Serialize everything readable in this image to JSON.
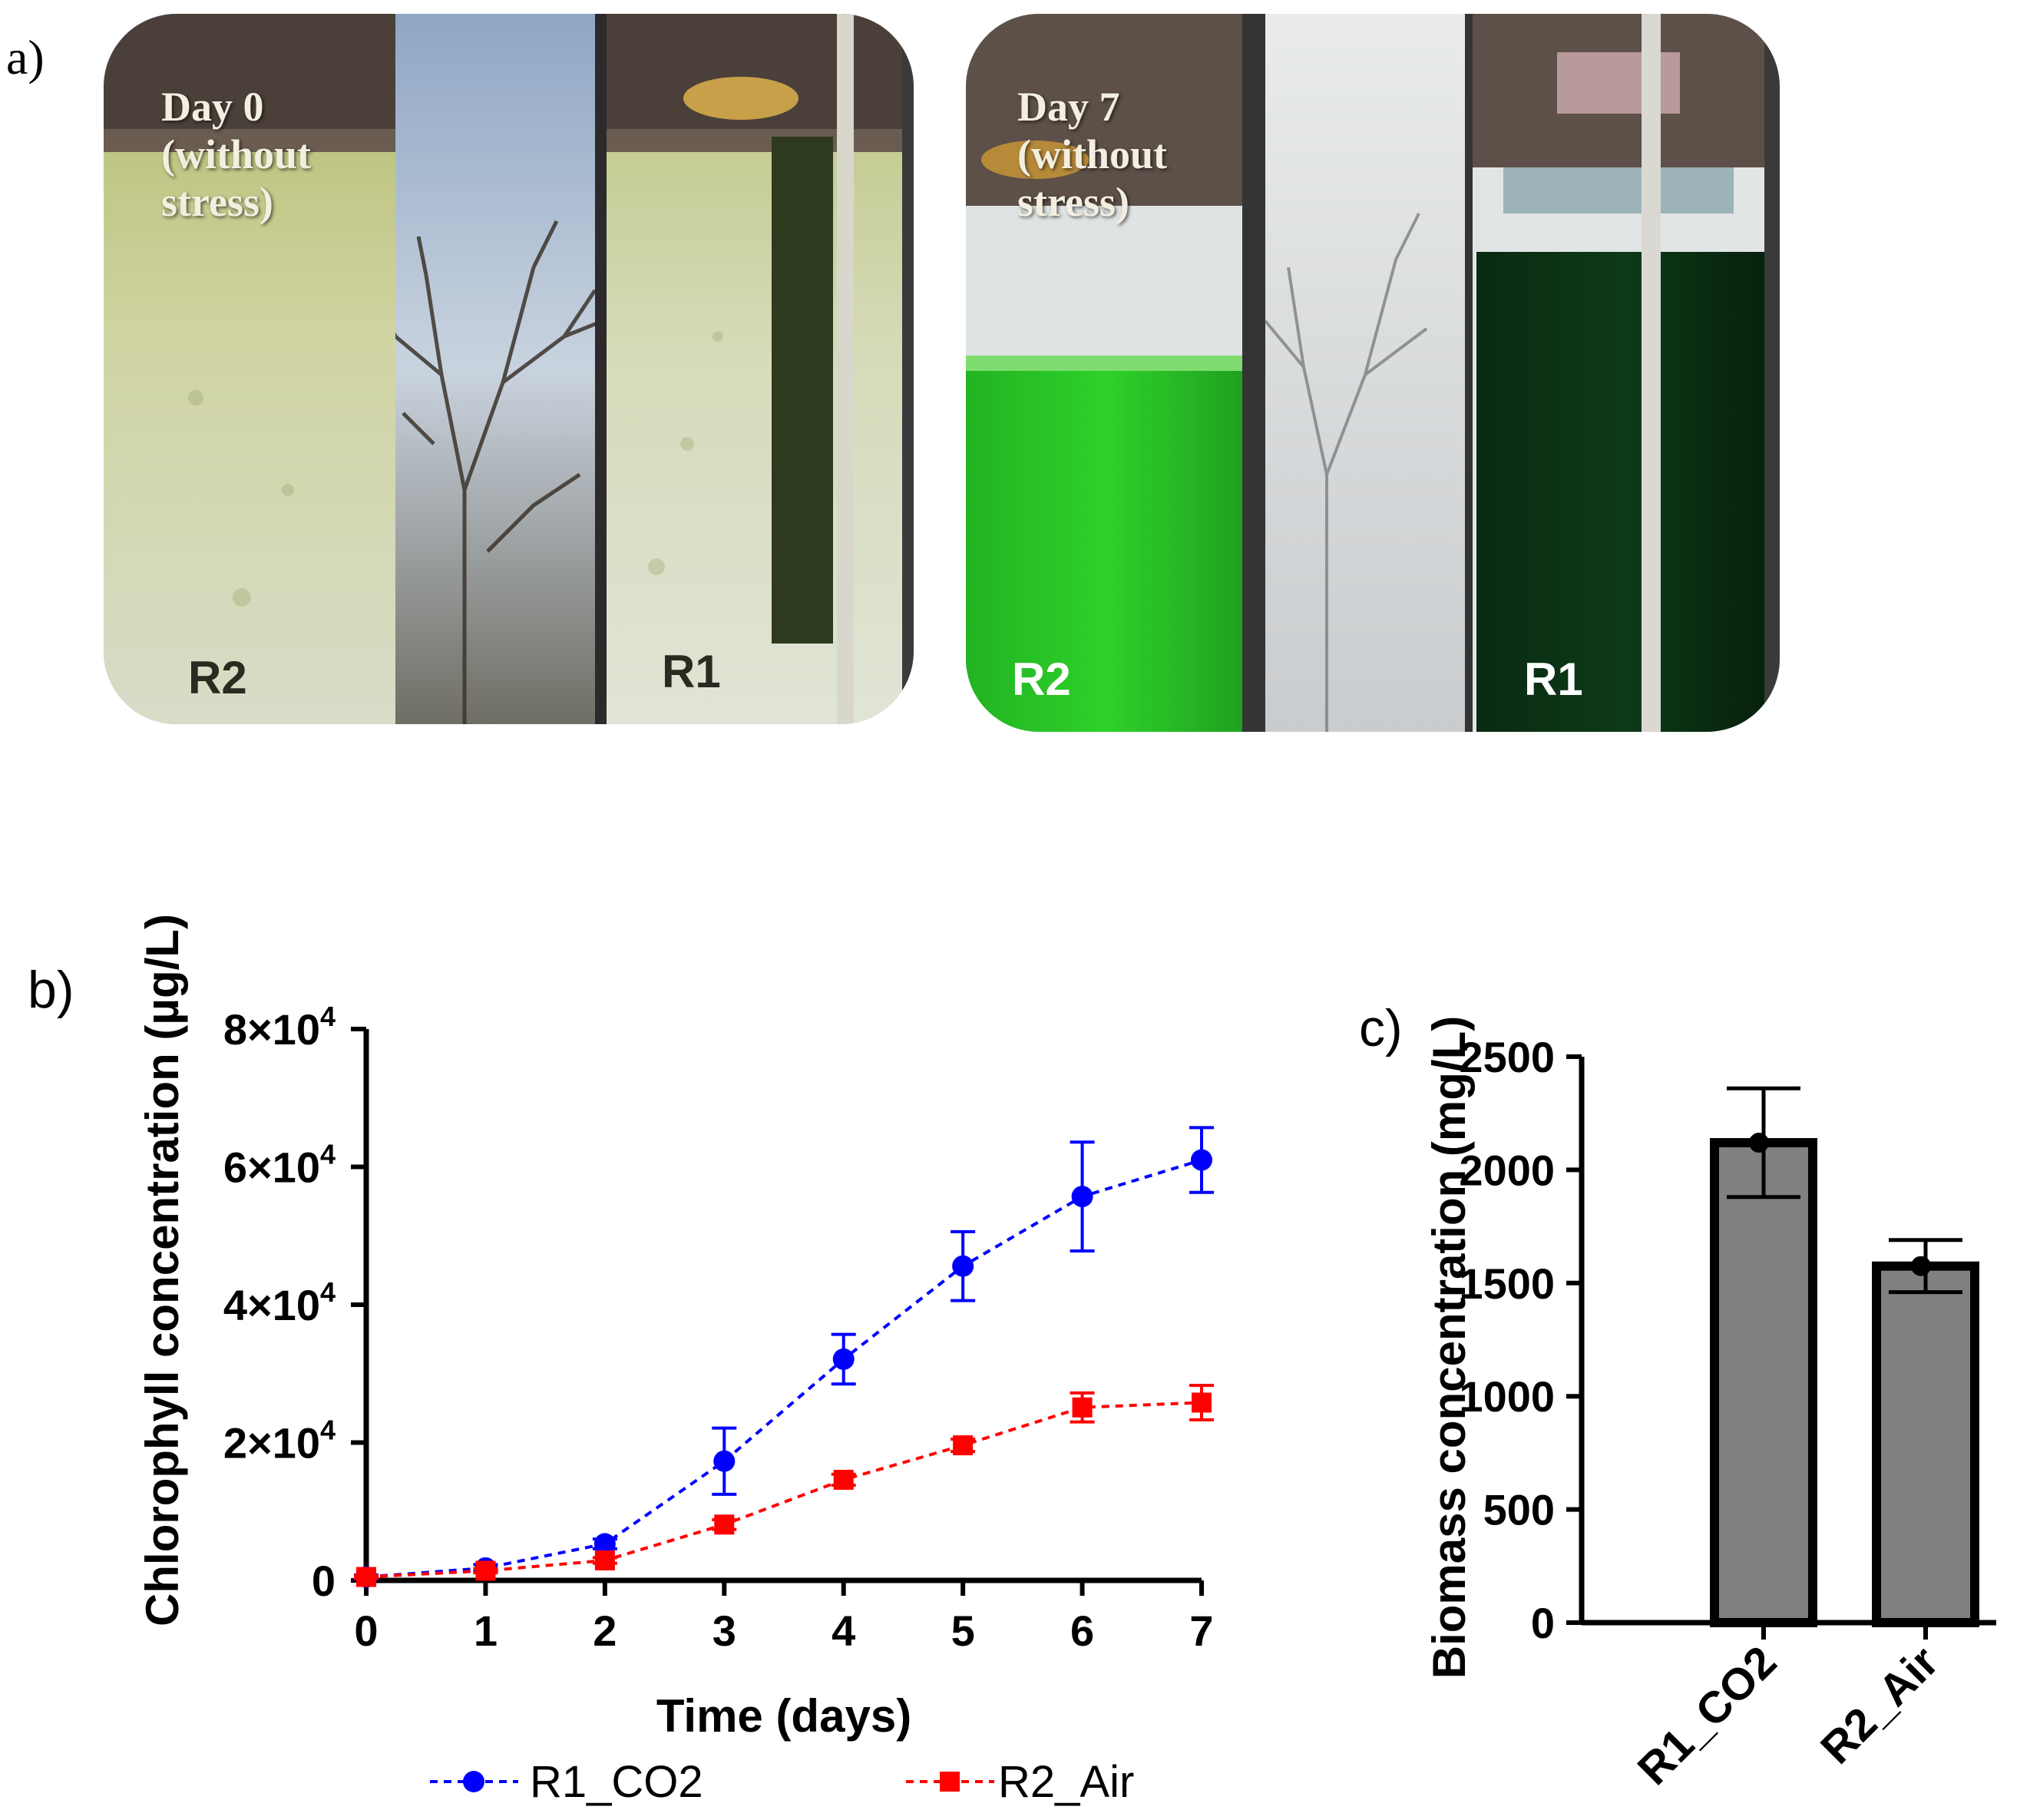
{
  "panels": {
    "a_label": "a)",
    "b_label": "b)",
    "c_label": "c)"
  },
  "photos": [
    {
      "caption": [
        "Day 0",
        "(without",
        "stress)"
      ],
      "left_reactor": "R2",
      "right_reactor": "R1"
    },
    {
      "caption": [
        "Day 7",
        "(without",
        "stress)"
      ],
      "left_reactor": "R2",
      "right_reactor": "R1"
    }
  ],
  "colors": {
    "r1_series": "#0000ff",
    "r2_series": "#ff0000",
    "bar_fill": "#808080",
    "axis": "#000000"
  },
  "chart_data": [
    {
      "id": "b",
      "type": "line",
      "xlabel": "Time (days)",
      "ylabel": "Chlorophyll concentration (µg/L)",
      "xlim": [
        0,
        7
      ],
      "ylim": [
        0,
        80000
      ],
      "x": [
        0,
        1,
        2,
        3,
        4,
        5,
        6,
        7
      ],
      "yticks": [
        {
          "value": 0,
          "mantissa": "0",
          "exp": ""
        },
        {
          "value": 20000,
          "mantissa": "2×10",
          "exp": "4"
        },
        {
          "value": 40000,
          "mantissa": "4×10",
          "exp": "4"
        },
        {
          "value": 60000,
          "mantissa": "6×10",
          "exp": "4"
        },
        {
          "value": 80000,
          "mantissa": "8×10",
          "exp": "4"
        }
      ],
      "series": [
        {
          "name": "R1_CO2",
          "marker": "circle",
          "color": "#0000ff",
          "values": [
            500,
            1800,
            5300,
            17300,
            32100,
            45600,
            55700,
            61000
          ],
          "errors": [
            300,
            500,
            700,
            4800,
            3600,
            5000,
            7900,
            4700
          ]
        },
        {
          "name": "R2_Air",
          "marker": "square",
          "color": "#ff0000",
          "values": [
            500,
            1400,
            2900,
            8100,
            14600,
            19600,
            25100,
            25800
          ],
          "errors": [
            200,
            300,
            400,
            700,
            800,
            900,
            2100,
            2500
          ]
        }
      ],
      "legend": "bottom"
    },
    {
      "id": "c",
      "type": "bar",
      "ylabel": "Biomass concentration (mg/L)",
      "ylim": [
        0,
        2500
      ],
      "yticks": [
        0,
        500,
        1000,
        1500,
        2000,
        2500
      ],
      "categories": [
        "R1_CO2",
        "R2_Air"
      ],
      "values": [
        2120,
        1575
      ],
      "errors": [
        240,
        115
      ]
    }
  ]
}
